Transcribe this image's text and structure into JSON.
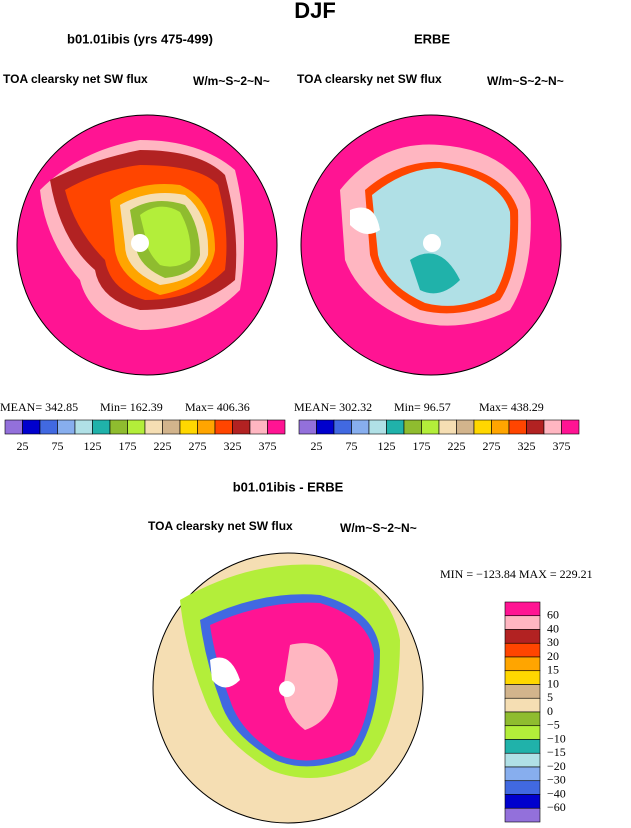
{
  "title": "DJF",
  "panels": [
    {
      "title": "b01.01ibis (yrs 475-499)",
      "left": "TOA clearsky net SW flux",
      "right": "W/m~S~2~N~",
      "stats": [
        "MEAN= 342.85",
        "Min= 162.39",
        "Max= 406.36"
      ]
    },
    {
      "title": "ERBE",
      "left": "TOA clearsky net SW flux",
      "right": "W/m~S~2~N~",
      "stats": [
        "MEAN= 302.32",
        "Min=   96.57",
        "Max= 438.29"
      ]
    }
  ],
  "colorbar": {
    "colors": [
      "#9370db",
      "#0000cd",
      "#4169e1",
      "#87aeee",
      "#b0e0e6",
      "#20b2aa",
      "#8fbc2f",
      "#b3ee3a",
      "#f5deb3",
      "#d2b48c",
      "#ffd700",
      "#ffa500",
      "#ff4500",
      "#b22222",
      "#ffb6c1",
      "#ff1493"
    ],
    "labels": [
      "25",
      "75",
      "125",
      "175",
      "225",
      "275",
      "325",
      "375"
    ]
  },
  "diff": {
    "title": "b01.01ibis - ERBE",
    "left": "TOA clearsky net SW flux",
    "right": "W/m~S~2~N~",
    "stats": "MIN = −123.84 MAX = 229.21",
    "colorbar": {
      "colors": [
        "#ff1493",
        "#ffb6c1",
        "#b22222",
        "#ff4500",
        "#ffa500",
        "#ffd700",
        "#d2b48c",
        "#f5deb3",
        "#8fbc2f",
        "#b3ee3a",
        "#20b2aa",
        "#b0e0e6",
        "#87aeee",
        "#4169e1",
        "#0000cd",
        "#9370db"
      ],
      "labels": [
        "60",
        "40",
        "30",
        "20",
        "15",
        "10",
        "5",
        "0",
        "−5",
        "−10",
        "−15",
        "−20",
        "−30",
        "−40",
        "−60"
      ]
    }
  }
}
